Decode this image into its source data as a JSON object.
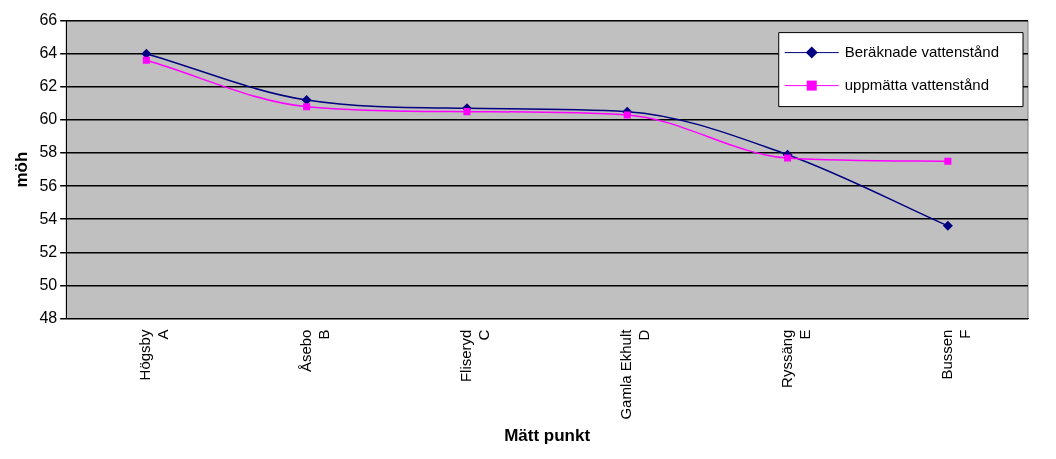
{
  "chart_data": {
    "type": "line",
    "xlabel": "Mätt punkt",
    "ylabel": "möh",
    "categories": [
      "Högsby A",
      "Åsebo B",
      "Fliseryd C",
      "Gamla Ekhult D",
      "Ryssäng E",
      "Bussen F"
    ],
    "series": [
      {
        "name": "Beräknade vattenstånd",
        "color": "#000080",
        "marker": "diamond",
        "values": [
          64.0,
          61.2,
          60.7,
          60.5,
          57.9,
          53.6
        ]
      },
      {
        "name": "uppmätta vattenstånd",
        "color": "#ff00ff",
        "marker": "square",
        "values": [
          63.6,
          60.8,
          60.5,
          60.3,
          57.7,
          57.5
        ]
      }
    ],
    "ylim": [
      48,
      66
    ],
    "yticks": [
      48,
      50,
      52,
      54,
      56,
      58,
      60,
      62,
      64,
      66
    ],
    "grid": "y",
    "legend": "top right"
  }
}
